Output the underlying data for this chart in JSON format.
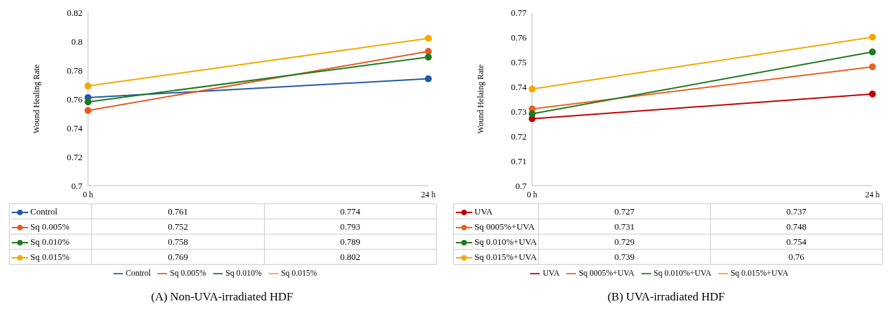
{
  "chart_data": [
    {
      "type": "line",
      "ylabel": "Wound Healing Rate",
      "categories": [
        "0 h",
        "24 h"
      ],
      "ylim": [
        0.7,
        0.82
      ],
      "yticks": [
        0.7,
        0.72,
        0.74,
        0.76,
        0.78,
        0.8,
        0.82
      ],
      "legend": "bottom",
      "marker": "circle",
      "data_labels": true,
      "annotations": [
        "(A) Non-UVA-irradiated HDF"
      ],
      "series": [
        {
          "name": "Control",
          "color": "#1f5aa6",
          "values": [
            0.761,
            0.774
          ]
        },
        {
          "name": "Sq 0.005%",
          "color": "#e65a1f",
          "values": [
            0.752,
            0.793
          ]
        },
        {
          "name": "Sq 0.010%",
          "color": "#1e7a1e",
          "values": [
            0.758,
            0.789
          ]
        },
        {
          "name": "Sq 0.015%",
          "color": "#f5a800",
          "values": [
            0.769,
            0.802
          ]
        }
      ]
    },
    {
      "type": "line",
      "ylabel": "Wound Helaing Rate",
      "categories": [
        "0 h",
        "24 h"
      ],
      "ylim": [
        0.7,
        0.77
      ],
      "yticks": [
        0.7,
        0.71,
        0.72,
        0.73,
        0.74,
        0.75,
        0.76,
        0.77
      ],
      "legend": "bottom",
      "marker": "circle",
      "data_labels": true,
      "annotations": [
        "(B) UVA-irradiated HDF"
      ],
      "series": [
        {
          "name": "UVA",
          "color": "#c00000",
          "values": [
            0.727,
            0.737
          ]
        },
        {
          "name": "Sq 0005%+UVA",
          "color": "#e8641e",
          "values": [
            0.731,
            0.748
          ]
        },
        {
          "name": "Sq 0.010%+UVA",
          "color": "#1e7a1e",
          "values": [
            0.729,
            0.754
          ]
        },
        {
          "name": "Sq 0.015%+UVA",
          "color": "#f5a800",
          "values": [
            0.739,
            0.76
          ]
        }
      ]
    }
  ]
}
